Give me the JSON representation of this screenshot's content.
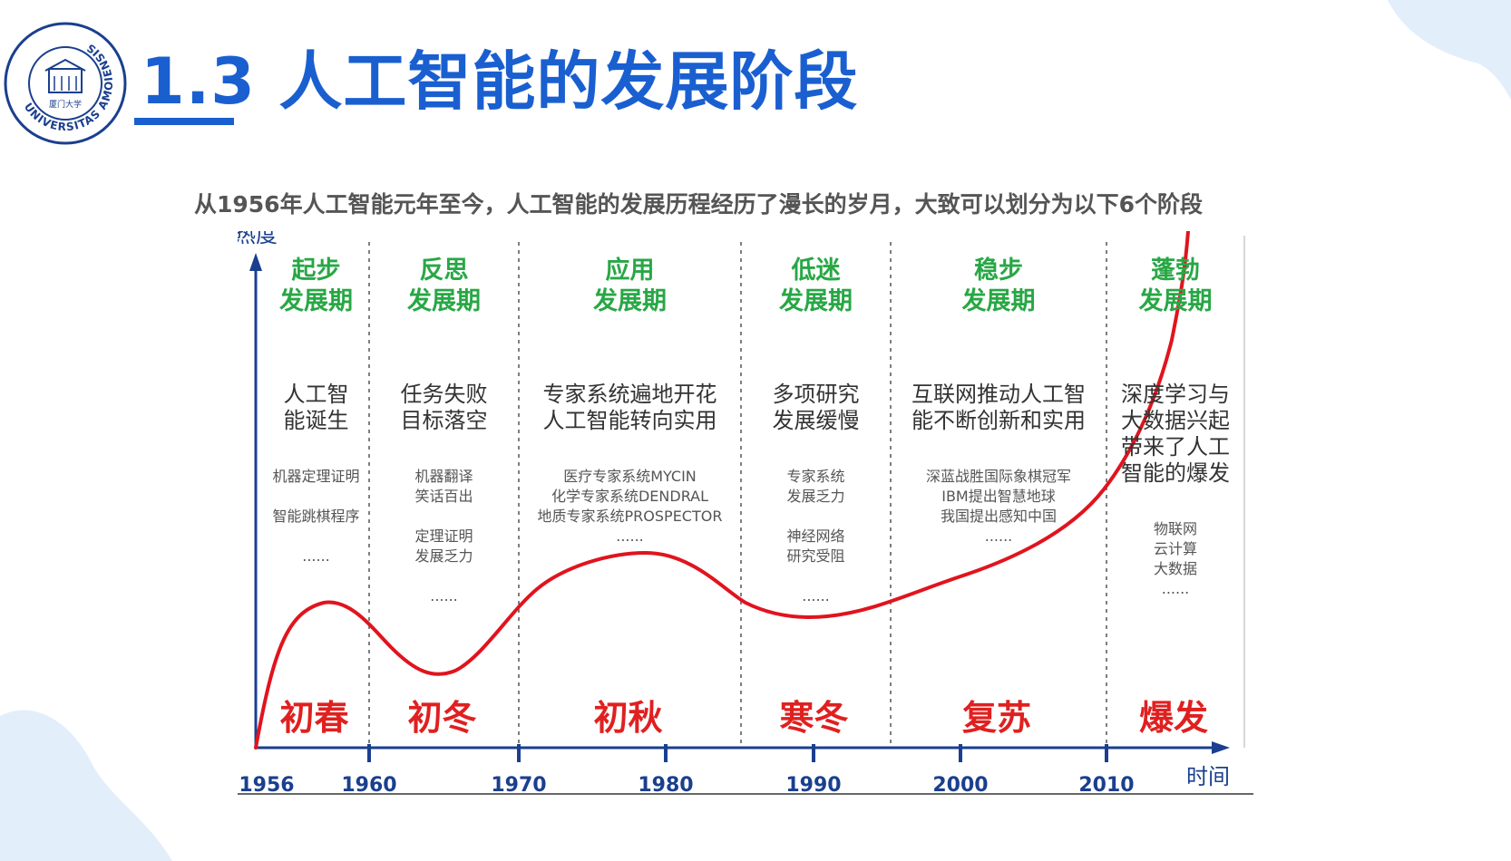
{
  "header": {
    "title": "1.3 人工智能的发展阶段",
    "subtitle": "从1956年人工智能元年至今，人工智能的发展历程经历了漫长的岁月，大致可以划分为以下6个阶段"
  },
  "logo": {
    "ring_text": "UNIVERSITAS AMOIENSIS",
    "inner_text": "厦门大学"
  },
  "colors": {
    "title": "#1a5fd0",
    "phase_title": "#28a745",
    "season": "#e02020",
    "curve": "#e0141e",
    "axis": "#1a3f8f"
  },
  "diagram": {
    "y_label": "热度",
    "x_label": "时间",
    "years": [
      "1956",
      "1960",
      "1970",
      "1980",
      "1990",
      "2000",
      "2010"
    ],
    "phases": [
      {
        "title": [
          "起步",
          "发展期"
        ],
        "headline": [
          "人工智",
          "能诞生"
        ],
        "details": [
          "机器定理证明",
          "",
          "智能跳棋程序",
          "",
          "......"
        ],
        "season": "初春"
      },
      {
        "title": [
          "反思",
          "发展期"
        ],
        "headline": [
          "任务失败",
          "目标落空"
        ],
        "details": [
          "机器翻译",
          "笑话百出",
          "",
          "定理证明",
          "发展乏力",
          "",
          "......"
        ],
        "season": "初冬"
      },
      {
        "title": [
          "应用",
          "发展期"
        ],
        "headline": [
          "专家系统遍地开花",
          "人工智能转向实用"
        ],
        "details": [
          "医疗专家系统MYCIN",
          "化学专家系统DENDRAL",
          "地质专家系统PROSPECTOR",
          "......"
        ],
        "season": "初秋"
      },
      {
        "title": [
          "低迷",
          "发展期"
        ],
        "headline": [
          "多项研究",
          "发展缓慢"
        ],
        "details": [
          "专家系统",
          "发展乏力",
          "",
          "神经网络",
          "研究受阻",
          "",
          "......"
        ],
        "season": "寒冬"
      },
      {
        "title": [
          "稳步",
          "发展期"
        ],
        "headline": [
          "互联网推动人工智",
          "能不断创新和实用"
        ],
        "details": [
          "深蓝战胜国际象棋冠军",
          "IBM提出智慧地球",
          "我国提出感知中国",
          "......"
        ],
        "season": "复苏"
      },
      {
        "title": [
          "蓬勃",
          "发展期"
        ],
        "headline": [
          "深度学习与",
          "大数据兴起",
          "带来了人工",
          "智能的爆发"
        ],
        "details": [
          "物联网",
          "云计算",
          "大数据",
          "......"
        ],
        "season": "爆发"
      }
    ]
  }
}
